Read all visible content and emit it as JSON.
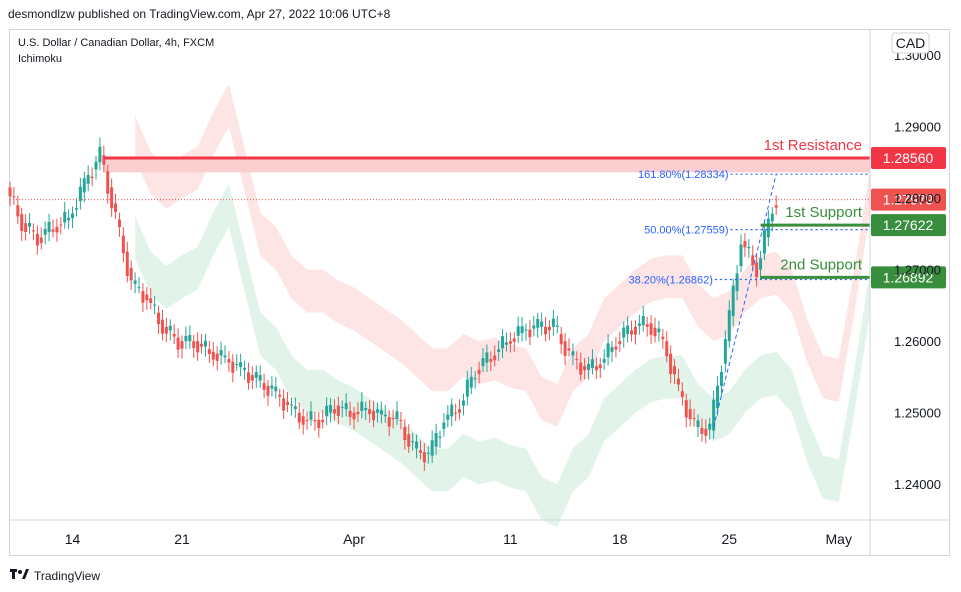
{
  "header": {
    "text": "desmondlzw published on TradingView.com, Apr 27, 2022 10:06 UTC+8"
  },
  "footer": {
    "brand": "TradingView",
    "logo_icon": "tradingview-logo-icon"
  },
  "currency_label": "CAD",
  "chart_data": {
    "type": "candlestick",
    "title": "U.S. Dollar / Canadian Dollar, 4h, FXCM",
    "indicator": "Ichimoku",
    "ylim": [
      1.235,
      1.3035
    ],
    "y_ticks": [
      {
        "value": 1.24,
        "label": "1.24000"
      },
      {
        "value": 1.25,
        "label": "1.25000"
      },
      {
        "value": 1.26,
        "label": "1.26000"
      },
      {
        "value": 1.27,
        "label": "1.27000"
      },
      {
        "value": 1.28,
        "label": "1.28000"
      },
      {
        "value": 1.29,
        "label": "1.29000"
      },
      {
        "value": 1.3,
        "label": "1.30000"
      }
    ],
    "x_ticks": [
      {
        "label": "14",
        "date": "2022-03-14"
      },
      {
        "label": "21",
        "date": "2022-03-21"
      },
      {
        "label": "Apr",
        "date": "2022-04-01"
      },
      {
        "label": "11",
        "date": "2022-04-11"
      },
      {
        "label": "18",
        "date": "2022-04-18"
      },
      {
        "label": "25",
        "date": "2022-04-25"
      },
      {
        "label": "May",
        "date": "2022-05-02"
      }
    ],
    "x_range": [
      "2022-03-10",
      "2022-05-04"
    ],
    "price_path": [
      [
        "2022-03-10",
        1.2815
      ],
      [
        "2022-03-11",
        1.2765
      ],
      [
        "2022-03-12",
        1.2745
      ],
      [
        "2022-03-13",
        1.276
      ],
      [
        "2022-03-14",
        1.2772
      ],
      [
        "2022-03-15",
        1.282
      ],
      [
        "2022-03-16",
        1.286
      ],
      [
        "2022-03-17",
        1.277
      ],
      [
        "2022-03-18",
        1.268
      ],
      [
        "2022-03-19",
        1.266
      ],
      [
        "2022-03-20",
        1.262
      ],
      [
        "2022-03-21",
        1.26
      ],
      [
        "2022-03-22",
        1.26
      ],
      [
        "2022-03-23",
        1.2585
      ],
      [
        "2022-03-24",
        1.2575
      ],
      [
        "2022-03-25",
        1.256
      ],
      [
        "2022-03-26",
        1.2545
      ],
      [
        "2022-03-27",
        1.253
      ],
      [
        "2022-03-28",
        1.251
      ],
      [
        "2022-03-29",
        1.249
      ],
      [
        "2022-03-30",
        1.249
      ],
      [
        "2022-03-31",
        1.251
      ],
      [
        "2022-04-01",
        1.25
      ],
      [
        "2022-04-02",
        1.2505
      ],
      [
        "2022-04-03",
        1.2495
      ],
      [
        "2022-04-04",
        1.249
      ],
      [
        "2022-04-05",
        1.245
      ],
      [
        "2022-04-06",
        1.244
      ],
      [
        "2022-04-07",
        1.249
      ],
      [
        "2022-04-08",
        1.251
      ],
      [
        "2022-04-09",
        1.256
      ],
      [
        "2022-04-10",
        1.258
      ],
      [
        "2022-04-11",
        1.26
      ],
      [
        "2022-04-12",
        1.2615
      ],
      [
        "2022-04-13",
        1.262
      ],
      [
        "2022-04-14",
        1.262
      ],
      [
        "2022-04-15",
        1.258
      ],
      [
        "2022-04-16",
        1.256
      ],
      [
        "2022-04-17",
        1.257
      ],
      [
        "2022-04-18",
        1.26
      ],
      [
        "2022-04-19",
        1.262
      ],
      [
        "2022-04-20",
        1.2625
      ],
      [
        "2022-04-21",
        1.26
      ],
      [
        "2022-04-22",
        1.253
      ],
      [
        "2022-04-23",
        1.248
      ],
      [
        "2022-04-24",
        1.2475
      ],
      [
        "2022-04-25",
        1.26
      ],
      [
        "2022-04-26",
        1.274
      ],
      [
        "2022-04-27",
        1.27
      ],
      [
        "2022-04-28",
        1.279
      ],
      [
        "2022-04-28",
        1.2798
      ]
    ],
    "levels": [
      {
        "name": "1st Resistance",
        "value": 1.2856,
        "label": "1.28560",
        "color": "#f23645"
      },
      {
        "name": "1st Support",
        "value": 1.27622,
        "label": "1.27622",
        "color": "#388e3c"
      },
      {
        "name": "2nd Support",
        "value": 1.26892,
        "label": "1.26892",
        "color": "#388e3c"
      }
    ],
    "current_price": {
      "value": 1.27979,
      "label": "1.27979",
      "color": "#ef5350"
    },
    "fib_levels": [
      {
        "label": "161.80%(1.28334)",
        "value": 1.28334
      },
      {
        "label": "50.00%(1.27559)",
        "value": 1.27559
      },
      {
        "label": "38.20%(1.26862)",
        "value": 1.26862
      }
    ],
    "colors": {
      "up": "#26a69a",
      "down": "#ef5350",
      "cloud_bull": "#d8efe1",
      "cloud_bear": "#fcdcdc",
      "fib": "#2962ff"
    }
  }
}
